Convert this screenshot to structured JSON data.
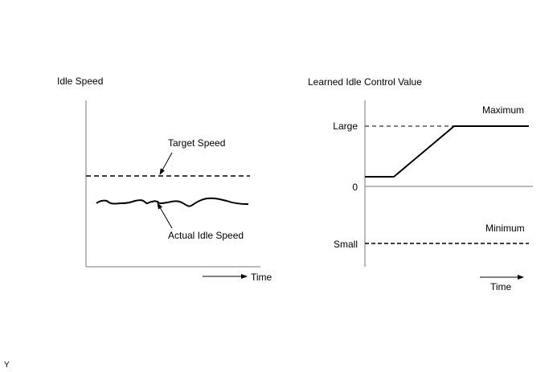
{
  "left_graph": {
    "title": "Idle Speed",
    "target_label": "Target Speed",
    "actual_label": "Actual Idle Speed",
    "time_label": "Time"
  },
  "right_graph": {
    "title": "Learned Idle Control Value",
    "large_label": "Large",
    "zero_label": "0",
    "small_label": "Small",
    "maximum_label": "Maximum",
    "minimum_label": "Minimum",
    "time_label": "Time"
  },
  "corner_mark": "Y"
}
